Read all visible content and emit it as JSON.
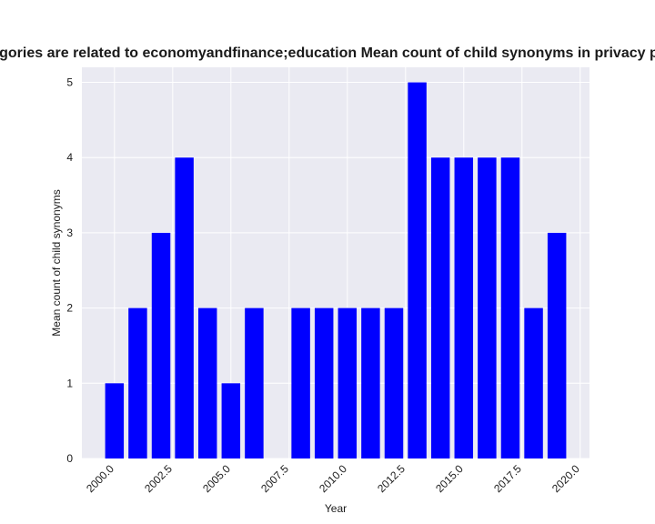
{
  "chart_data": {
    "type": "bar",
    "title": "Categories are related to economyandfinance;education Mean count of child synonyms in privacy policies",
    "xlabel": "Year",
    "ylabel": "Mean count of child synonyms",
    "x": [
      2000,
      2001,
      2002,
      2003,
      2004,
      2005,
      2006,
      2008,
      2009,
      2010,
      2011,
      2012,
      2013,
      2014,
      2015,
      2016,
      2017,
      2018,
      2019
    ],
    "values": [
      1,
      2,
      3,
      4,
      2,
      1,
      2,
      2,
      2,
      2,
      2,
      2,
      5,
      4,
      4,
      4,
      4,
      2,
      3
    ],
    "xlim": [
      1998.6,
      2020.4
    ],
    "ylim": [
      0,
      5.2
    ],
    "xticks": [
      2000.0,
      2002.5,
      2005.0,
      2007.5,
      2010.0,
      2012.5,
      2015.0,
      2017.5,
      2020.0
    ],
    "xtick_labels": [
      "2000.0",
      "2002.5",
      "2005.0",
      "2007.5",
      "2010.0",
      "2012.5",
      "2015.0",
      "2017.5",
      "2020.0"
    ],
    "yticks": [
      0,
      1,
      2,
      3,
      4,
      5
    ],
    "ytick_labels": [
      "0",
      "1",
      "2",
      "3",
      "4",
      "5"
    ],
    "bar_color": "#0000ff",
    "background_color": "#eaeaf2",
    "grid": true
  }
}
